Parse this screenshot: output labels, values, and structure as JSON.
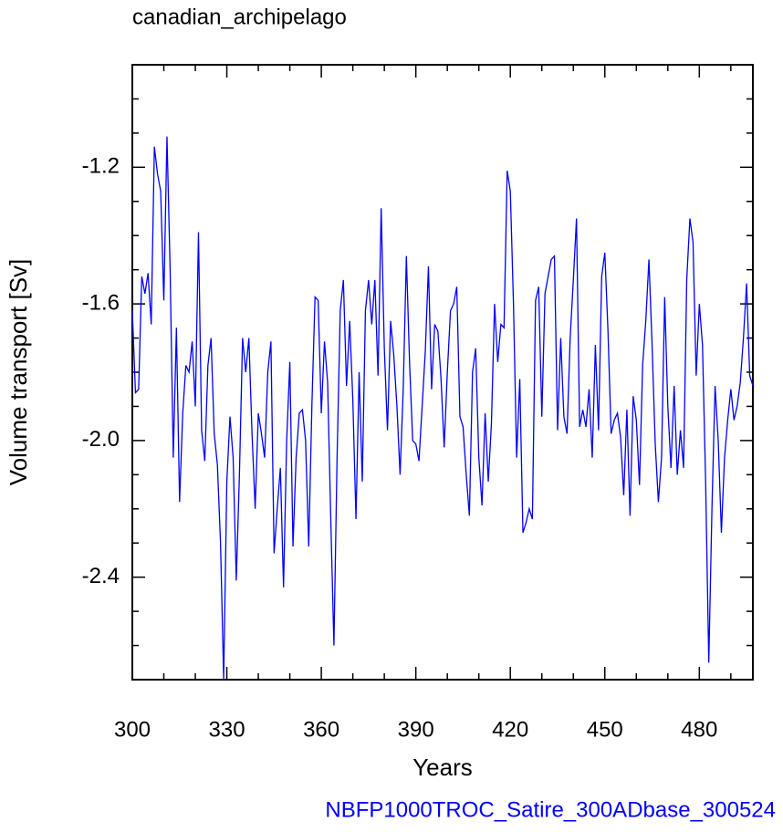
{
  "chart_data": {
    "type": "line",
    "title": "canadian_archipelago",
    "xlabel": "Years",
    "ylabel": "Volume transport [Sv]",
    "footer": "NBFP1000TROC_Satire_300ADbase_300524",
    "x_start": 300,
    "series": [
      {
        "color": "#0000ff",
        "values": [
          -1.62,
          -1.86,
          -1.85,
          -1.52,
          -1.57,
          -1.51,
          -1.66,
          -1.14,
          -1.22,
          -1.27,
          -1.59,
          -1.11,
          -1.5,
          -2.05,
          -1.67,
          -2.18,
          -1.92,
          -1.78,
          -1.8,
          -1.71,
          -1.9,
          -1.39,
          -1.97,
          -2.06,
          -1.78,
          -1.7,
          -1.98,
          -2.07,
          -2.3,
          -2.7,
          -2.12,
          -1.93,
          -2.05,
          -2.41,
          -2.1,
          -1.7,
          -1.8,
          -1.7,
          -1.98,
          -2.2,
          -1.92,
          -1.98,
          -2.05,
          -1.8,
          -1.71,
          -2.33,
          -2.2,
          -2.08,
          -2.43,
          -2.0,
          -1.77,
          -2.31,
          -2.05,
          -1.92,
          -1.91,
          -2.0,
          -2.31,
          -1.9,
          -1.58,
          -1.59,
          -1.92,
          -1.71,
          -1.83,
          -2.23,
          -2.6,
          -2.05,
          -1.62,
          -1.53,
          -1.84,
          -1.65,
          -1.88,
          -2.23,
          -1.8,
          -2.12,
          -1.62,
          -1.53,
          -1.66,
          -1.53,
          -1.81,
          -1.32,
          -1.73,
          -1.97,
          -1.65,
          -1.75,
          -1.9,
          -2.1,
          -1.85,
          -1.46,
          -1.77,
          -2.0,
          -2.01,
          -2.06,
          -1.9,
          -1.74,
          -1.49,
          -1.85,
          -1.66,
          -1.68,
          -1.82,
          -2.02,
          -1.8,
          -1.62,
          -1.6,
          -1.55,
          -1.93,
          -1.96,
          -2.1,
          -2.22,
          -1.8,
          -1.73,
          -2.05,
          -2.19,
          -1.92,
          -2.12,
          -1.95,
          -1.6,
          -1.77,
          -1.66,
          -1.67,
          -1.21,
          -1.27,
          -1.6,
          -2.05,
          -1.82,
          -2.27,
          -2.24,
          -2.2,
          -2.23,
          -1.59,
          -1.55,
          -1.93,
          -1.57,
          -1.52,
          -1.47,
          -1.46,
          -1.97,
          -1.7,
          -1.93,
          -1.98,
          -1.7,
          -1.53,
          -1.35,
          -1.96,
          -1.91,
          -1.96,
          -1.85,
          -2.05,
          -1.72,
          -1.97,
          -1.52,
          -1.45,
          -1.68,
          -1.98,
          -1.94,
          -1.92,
          -1.99,
          -2.16,
          -1.91,
          -2.22,
          -1.87,
          -1.94,
          -2.13,
          -1.78,
          -1.65,
          -1.47,
          -1.72,
          -2.01,
          -2.18,
          -2.05,
          -1.58,
          -1.9,
          -2.08,
          -1.84,
          -2.1,
          -1.97,
          -2.08,
          -1.53,
          -1.35,
          -1.42,
          -1.81,
          -1.6,
          -1.72,
          -2.12,
          -2.65,
          -2.2,
          -1.84,
          -2.0,
          -2.27,
          -2.05,
          -1.94,
          -1.85,
          -1.94,
          -1.9,
          -1.83,
          -1.7,
          -1.54,
          -1.81,
          -1.84
        ]
      }
    ],
    "xlim": [
      300,
      497
    ],
    "ylim": [
      -2.7,
      -0.9
    ],
    "xticks": [
      300,
      330,
      360,
      390,
      420,
      450,
      480
    ],
    "xminorticks": [
      310,
      320,
      340,
      350,
      370,
      380,
      400,
      410,
      430,
      440,
      460,
      470,
      490
    ],
    "yticks": [
      -2.4,
      {
        "value": -2,
        "label": "-2.0"
      },
      -1.6,
      -1.2
    ],
    "yminorticks": [
      -2.6,
      -2.5,
      -2.3,
      -2.2,
      -2.1,
      -1.9,
      -1.8,
      -1.7,
      -1.5,
      -1.4,
      -1.3,
      -1.1,
      -1
    ]
  }
}
